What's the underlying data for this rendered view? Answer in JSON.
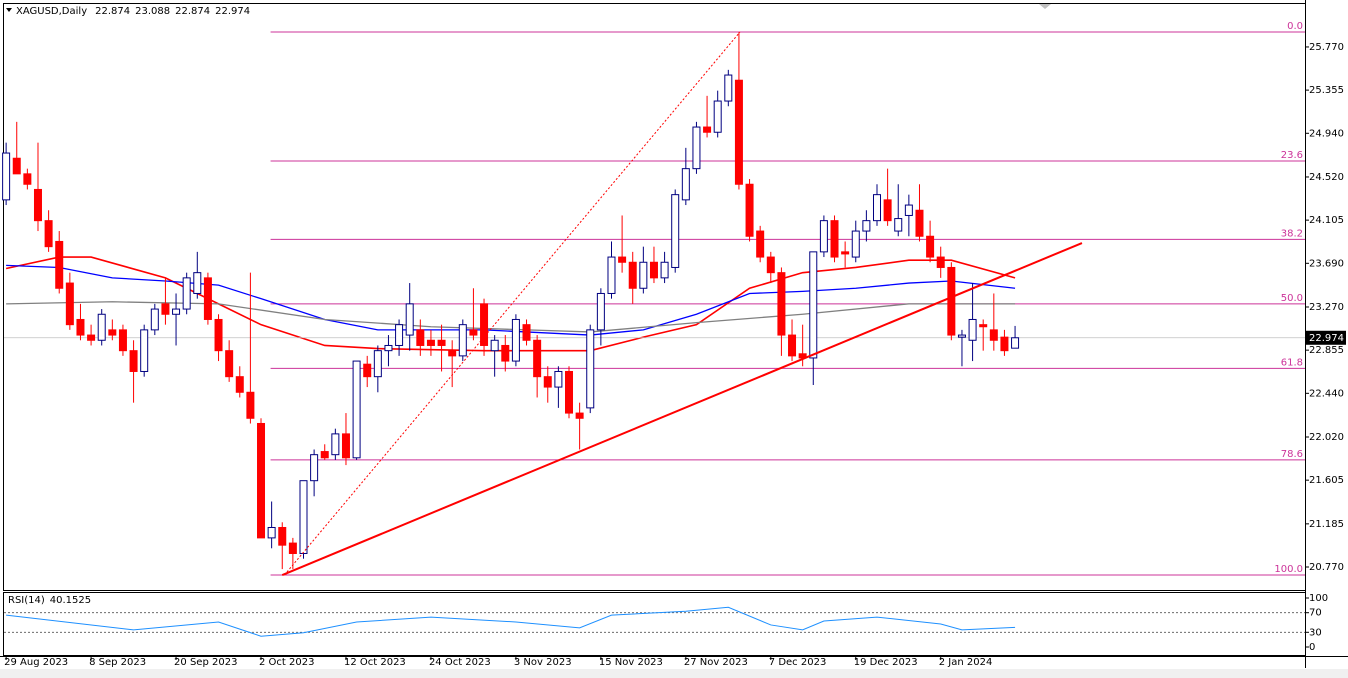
{
  "chart_data": [
    {
      "type": "candlestick",
      "symbol": "XAGUSD,Daily",
      "xlim": [
        -0.2,
        122.3
      ],
      "ylim": [
        20.549,
        26.183
      ],
      "xticks": [
        {
          "value": 0,
          "label": "29 Aug 2023"
        },
        {
          "value": 8,
          "label": "8 Sep 2023"
        },
        {
          "value": 16,
          "label": "20 Sep 2023"
        },
        {
          "value": 24,
          "label": "2 Oct 2023"
        },
        {
          "value": 32,
          "label": "12 Oct 2023"
        },
        {
          "value": 40,
          "label": "24 Oct 2023"
        },
        {
          "value": 48,
          "label": "3 Nov 2023"
        },
        {
          "value": 56,
          "label": "15 Nov 2023"
        },
        {
          "value": 64,
          "label": "27 Nov 2023"
        },
        {
          "value": 72,
          "label": "7 Dec 2023"
        },
        {
          "value": 80,
          "label": "19 Dec 2023"
        },
        {
          "value": 88,
          "label": "2 Jan 2024"
        }
      ],
      "yticks": [
        {
          "value": 25.77,
          "label": "25.770"
        },
        {
          "value": 25.355,
          "label": "25.355"
        },
        {
          "value": 24.94,
          "label": "24.940"
        },
        {
          "value": 24.52,
          "label": "24.520"
        },
        {
          "value": 24.105,
          "label": "24.105"
        },
        {
          "value": 23.69,
          "label": "23.690"
        },
        {
          "value": 23.27,
          "label": "23.270"
        },
        {
          "value": 22.855,
          "label": "22.855"
        },
        {
          "value": 22.44,
          "label": "22.440"
        },
        {
          "value": 22.02,
          "label": "22.020"
        },
        {
          "value": 21.605,
          "label": "21.605"
        },
        {
          "value": 21.185,
          "label": "21.185"
        },
        {
          "value": 20.77,
          "label": "20.770"
        }
      ],
      "up_color": "#ffffff",
      "up_border": "#000080",
      "down_color": "#ff0000",
      "candles": {
        "open": [
          24.3,
          24.7,
          24.55,
          24.4,
          24.1,
          23.9,
          23.5,
          23.15,
          23.0,
          22.95,
          23.05,
          23.05,
          22.85,
          22.65,
          23.05,
          23.3,
          23.2,
          23.25,
          23.4,
          23.55,
          23.15,
          22.85,
          22.6,
          22.45,
          22.15,
          21.05,
          21.15,
          21.0,
          20.9,
          21.6,
          21.88,
          21.85,
          22.05,
          21.82,
          22.72,
          22.6,
          22.85,
          22.9,
          23.0,
          23.05,
          22.95,
          22.95,
          22.85,
          22.8,
          23.05,
          23.3,
          22.85,
          22.9,
          22.75,
          23.1,
          22.95,
          22.6,
          22.5,
          22.65,
          22.25,
          22.3,
          23.05,
          23.4,
          23.75,
          23.7,
          23.45,
          23.7,
          23.55,
          23.65,
          24.3,
          24.6,
          25.0,
          24.95,
          25.25,
          25.45,
          24.45,
          24.0,
          23.75,
          23.6,
          23.0,
          22.82,
          22.78,
          23.8,
          24.1,
          23.8,
          23.75,
          24.0,
          24.1,
          24.3,
          24.0,
          24.15,
          24.2,
          23.95,
          23.75,
          23.65,
          22.98,
          22.95,
          23.1,
          23.05,
          22.98,
          22.874
        ],
        "high": [
          24.85,
          25.05,
          24.6,
          24.85,
          24.2,
          24.0,
          23.6,
          23.3,
          23.1,
          23.25,
          23.15,
          23.1,
          22.95,
          23.1,
          23.3,
          23.55,
          23.4,
          23.6,
          23.8,
          23.6,
          23.2,
          22.95,
          22.7,
          23.6,
          22.2,
          21.4,
          21.2,
          21.05,
          21.6,
          21.9,
          21.95,
          22.1,
          22.25,
          22.75,
          22.8,
          22.9,
          23.0,
          23.15,
          23.5,
          23.15,
          23.05,
          23.1,
          22.95,
          23.15,
          23.45,
          23.35,
          23.0,
          23.0,
          23.2,
          23.15,
          23.0,
          22.7,
          22.7,
          22.7,
          22.35,
          23.1,
          23.45,
          23.9,
          24.15,
          23.8,
          23.85,
          23.85,
          23.8,
          24.4,
          24.8,
          25.05,
          25.3,
          25.35,
          25.55,
          25.91,
          24.5,
          24.05,
          23.8,
          23.65,
          23.15,
          23.1,
          23.8,
          24.15,
          24.15,
          23.9,
          24.1,
          24.2,
          24.45,
          24.6,
          24.45,
          24.35,
          24.45,
          24.1,
          23.85,
          23.7,
          23.05,
          23.5,
          23.15,
          23.4,
          23.05,
          23.088
        ],
        "low": [
          24.25,
          24.55,
          24.4,
          24.0,
          23.8,
          23.4,
          23.05,
          22.95,
          22.9,
          22.9,
          22.95,
          22.8,
          22.35,
          22.6,
          23.0,
          23.1,
          22.9,
          23.2,
          23.35,
          23.1,
          22.75,
          22.55,
          22.4,
          22.15,
          21.05,
          20.95,
          20.75,
          20.75,
          20.85,
          21.45,
          21.8,
          21.8,
          21.75,
          21.8,
          22.5,
          22.45,
          22.7,
          22.8,
          22.85,
          22.8,
          22.8,
          22.65,
          22.5,
          22.75,
          22.95,
          22.8,
          22.6,
          22.65,
          22.7,
          22.9,
          22.4,
          22.35,
          22.3,
          22.2,
          21.9,
          22.25,
          22.9,
          23.35,
          23.6,
          23.3,
          23.4,
          23.5,
          23.5,
          23.6,
          24.25,
          24.55,
          24.9,
          24.9,
          25.2,
          24.4,
          23.9,
          23.7,
          23.5,
          22.8,
          22.75,
          22.7,
          22.52,
          23.75,
          23.7,
          23.65,
          23.7,
          23.9,
          24.05,
          24.05,
          23.95,
          23.95,
          23.9,
          23.7,
          23.55,
          22.95,
          22.7,
          22.75,
          22.85,
          22.85,
          22.8,
          22.874
        ],
        "close": [
          24.75,
          24.55,
          24.45,
          24.1,
          23.85,
          23.45,
          23.1,
          23.0,
          22.95,
          23.2,
          23.0,
          22.85,
          22.65,
          23.05,
          23.25,
          23.2,
          23.25,
          23.55,
          23.6,
          23.15,
          22.85,
          22.6,
          22.45,
          22.2,
          21.05,
          21.15,
          20.98,
          20.9,
          21.6,
          21.85,
          21.82,
          22.05,
          21.82,
          22.75,
          22.6,
          22.85,
          22.9,
          23.1,
          23.3,
          22.9,
          22.9,
          22.9,
          22.8,
          23.1,
          23.0,
          22.9,
          22.95,
          22.75,
          23.15,
          22.95,
          22.6,
          22.5,
          22.65,
          22.25,
          22.2,
          23.05,
          23.4,
          23.75,
          23.7,
          23.45,
          23.7,
          23.55,
          23.7,
          24.35,
          24.6,
          25.0,
          24.95,
          25.25,
          25.5,
          24.45,
          23.95,
          23.75,
          23.6,
          23.0,
          22.8,
          22.78,
          23.8,
          24.1,
          23.75,
          23.78,
          24.0,
          24.1,
          24.35,
          24.1,
          24.12,
          24.25,
          23.95,
          23.75,
          23.65,
          23.0,
          23.0,
          23.15,
          23.08,
          22.95,
          22.85,
          22.974
        ]
      },
      "series": [
        {
          "color": "#ff0000",
          "x": [
            0,
            5,
            8,
            15,
            20,
            24,
            30,
            35,
            45,
            55,
            60,
            65,
            70,
            75,
            80,
            85,
            89,
            95
          ],
          "values": [
            23.64,
            23.75,
            23.75,
            23.55,
            23.3,
            23.1,
            22.9,
            22.87,
            22.85,
            22.85,
            22.98,
            23.1,
            23.45,
            23.6,
            23.65,
            23.72,
            23.72,
            23.55
          ]
        },
        {
          "color": "#0000ff",
          "x": [
            0,
            5,
            10,
            15,
            20,
            24,
            30,
            35,
            45,
            55,
            60,
            65,
            70,
            75,
            80,
            85,
            89,
            95
          ],
          "values": [
            23.67,
            23.65,
            23.55,
            23.52,
            23.48,
            23.35,
            23.15,
            23.05,
            23.05,
            23.0,
            23.05,
            23.2,
            23.4,
            23.42,
            23.45,
            23.5,
            23.52,
            23.45
          ]
        },
        {
          "color": "#808080",
          "x": [
            0,
            10,
            20,
            30,
            40,
            55,
            65,
            75,
            85,
            95
          ],
          "values": [
            23.3,
            23.32,
            23.3,
            23.15,
            23.08,
            23.03,
            23.12,
            23.2,
            23.3,
            23.3
          ]
        }
      ],
      "fibo": {
        "color": "#cc3399",
        "x_start": 24.9,
        "levels": [
          {
            "label": "0.0",
            "price": 25.914
          },
          {
            "label": "23.6",
            "price": 24.674
          },
          {
            "label": "38.2",
            "price": 23.92
          },
          {
            "label": "50.0",
            "price": 23.3
          },
          {
            "label": "61.8",
            "price": 22.68
          },
          {
            "label": "78.6",
            "price": 21.8
          },
          {
            "label": "100.0",
            "price": 20.693
          }
        ]
      },
      "lines": [
        {
          "color": "#ff0000",
          "style": "solid",
          "x": [
            26,
            101.3
          ],
          "y": [
            20.693,
            23.885
          ]
        },
        {
          "color": "#ff0000",
          "style": "dotted",
          "x": [
            26.2,
            69.1
          ],
          "y": [
            20.693,
            25.914
          ]
        }
      ]
    },
    {
      "type": "line",
      "title": "RSI(14)",
      "xlim": [
        -0.2,
        122.3
      ],
      "ylim": [
        0,
        100
      ],
      "yticks": [
        100,
        70,
        30,
        0
      ],
      "levels": [
        70,
        30
      ],
      "series": [
        {
          "color": "#1e90ff",
          "x": [
            0,
            12,
            20,
            24,
            28,
            33,
            40,
            48,
            54,
            57,
            64,
            68,
            72,
            75,
            77,
            82,
            88,
            90,
            95
          ],
          "values": [
            65,
            35,
            51,
            22,
            29,
            51,
            61,
            51,
            39,
            65,
            73,
            81,
            45,
            35,
            53,
            61,
            47,
            35,
            40.1525
          ]
        }
      ]
    }
  ]
}
